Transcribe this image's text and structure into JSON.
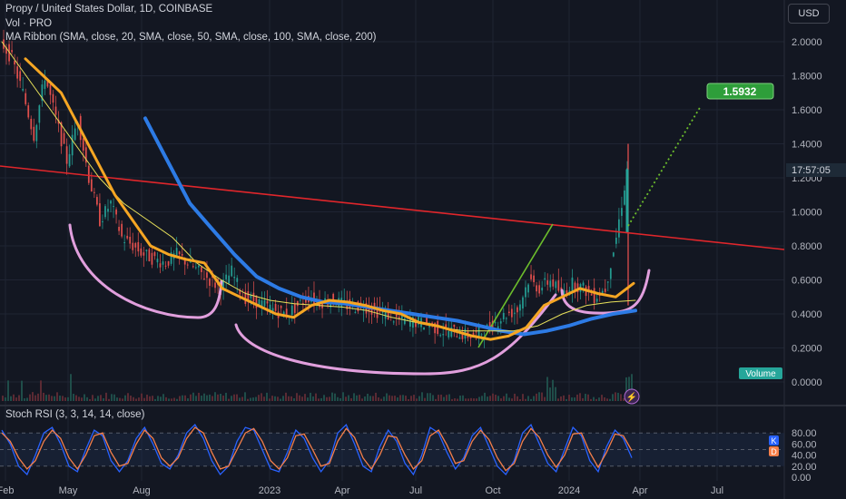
{
  "header": {
    "title": "Propy / United States Dollar, 1D, COINBASE",
    "vol": "Vol · PRO",
    "ma_ribbon": "MA Ribbon (SMA, close, 20, SMA, close, 50, SMA, close, 100, SMA, close, 200)"
  },
  "currency_button": "USD",
  "price_axis": {
    "ticks": [
      "2.0000",
      "1.8000",
      "1.6000",
      "1.4000",
      "1.2000",
      "1.0000",
      "0.8000",
      "0.6000",
      "0.4000",
      "0.2000",
      "0.0000"
    ],
    "current_time_label": "17:57:05",
    "volume_label": "Volume"
  },
  "time_axis": {
    "ticks": [
      "Feb",
      "May",
      "Aug",
      "2023",
      "Apr",
      "Jul",
      "Oct",
      "2024",
      "Apr",
      "Jul"
    ]
  },
  "target_label": "1.5932",
  "stoch_rsi": {
    "title": "Stoch RSI (3, 3, 14, 14, close)",
    "ticks": [
      "80.00",
      "60.00",
      "40.00",
      "20.00",
      "0.00"
    ],
    "k_label": "K",
    "d_label": "D"
  },
  "colors": {
    "background": "#131722",
    "grid": "#1f2433",
    "sma20": "#f5a623",
    "sma50": "#e8e15a",
    "sma100": "#2d7be5",
    "trendline": "#e0262b",
    "arcs": "#e19fdd",
    "green_line": "#6cbd2c",
    "target": "#2e9e3a",
    "stoch_k": "#2962ff",
    "stoch_d": "#f57f4a",
    "time_badge": "#1e2a37",
    "volume_badge": "#26a69a"
  },
  "chart_data": [
    {
      "type": "line",
      "name": "price",
      "x_ticks": [
        "Feb",
        "May",
        "Aug",
        "2023",
        "Apr",
        "Jul",
        "Oct",
        "2024",
        "Apr",
        "Jul"
      ],
      "ylim": [
        0,
        2.1
      ],
      "y_ticks": [
        2.0,
        1.8,
        1.6,
        1.4,
        1.2,
        1.0,
        0.8,
        0.6,
        0.4,
        0.2,
        0.0
      ],
      "target_value": 1.5932,
      "close_series": [
        2.0,
        1.9,
        1.7,
        1.45,
        1.8,
        1.55,
        1.3,
        1.55,
        1.2,
        0.95,
        1.05,
        0.85,
        0.8,
        0.75,
        0.72,
        0.7,
        0.75,
        0.7,
        0.65,
        0.6,
        0.55,
        0.65,
        0.5,
        0.48,
        0.45,
        0.42,
        0.4,
        0.45,
        0.5,
        0.47,
        0.48,
        0.46,
        0.44,
        0.45,
        0.42,
        0.4,
        0.37,
        0.36,
        0.35,
        0.34,
        0.3,
        0.3,
        0.28,
        0.27,
        0.3,
        0.35,
        0.4,
        0.42,
        0.6,
        0.55,
        0.6,
        0.52,
        0.58,
        0.55,
        0.5,
        0.55,
        0.85,
        1.25
      ],
      "series": [
        {
          "name": "SMA 20",
          "values": [
            1.9,
            1.8,
            1.7,
            1.5,
            1.3,
            1.1,
            0.95,
            0.8,
            0.75,
            0.72,
            0.7,
            0.55,
            0.5,
            0.45,
            0.4,
            0.38,
            0.45,
            0.48,
            0.47,
            0.45,
            0.42,
            0.4,
            0.35,
            0.33,
            0.3,
            0.27,
            0.25,
            0.27,
            0.32,
            0.45,
            0.5,
            0.55,
            0.52,
            0.5,
            0.58
          ]
        },
        {
          "name": "SMA 50",
          "values": [
            2.0,
            1.8,
            1.6,
            1.4,
            1.2,
            1.05,
            0.95,
            0.85,
            0.7,
            0.6,
            0.52,
            0.48,
            0.46,
            0.45,
            0.44,
            0.42,
            0.38,
            0.35,
            0.32,
            0.3,
            0.3,
            0.3,
            0.33,
            0.4,
            0.45,
            0.47,
            0.48
          ]
        },
        {
          "name": "SMA 100",
          "values": [
            1.55,
            1.3,
            1.05,
            0.9,
            0.75,
            0.62,
            0.55,
            0.5,
            0.47,
            0.46,
            0.44,
            0.42,
            0.4,
            0.38,
            0.36,
            0.33,
            0.3,
            0.28,
            0.3,
            0.33,
            0.37,
            0.4,
            0.42
          ]
        }
      ]
    },
    {
      "type": "line",
      "name": "Stoch RSI",
      "ylim": [
        0,
        100
      ],
      "y_ticks": [
        80,
        60,
        40,
        20,
        0
      ],
      "bands": [
        20,
        80
      ],
      "series": [
        {
          "name": "K",
          "values": [
            85,
            60,
            20,
            5,
            40,
            80,
            90,
            60,
            20,
            10,
            50,
            85,
            75,
            30,
            10,
            30,
            70,
            90,
            60,
            25,
            15,
            40,
            80,
            95,
            70,
            30,
            5,
            20,
            65,
            90,
            85,
            50,
            15,
            10,
            45,
            85,
            70,
            35,
            10,
            30,
            80,
            95,
            60,
            20,
            10,
            55,
            85,
            65,
            25,
            5,
            40,
            90,
            80,
            45,
            15,
            35,
            75,
            90,
            55,
            20,
            5,
            30,
            80,
            95,
            60,
            25,
            10,
            50,
            90,
            75,
            30,
            10,
            55,
            85,
            70,
            35
          ]
        },
        {
          "name": "D",
          "values": [
            80,
            65,
            35,
            15,
            30,
            65,
            85,
            70,
            35,
            15,
            40,
            75,
            80,
            45,
            20,
            25,
            60,
            85,
            70,
            35,
            20,
            35,
            70,
            90,
            80,
            45,
            15,
            20,
            50,
            80,
            88,
            65,
            30,
            15,
            35,
            75,
            78,
            50,
            20,
            25,
            65,
            88,
            72,
            35,
            15,
            40,
            75,
            72,
            40,
            15,
            30,
            75,
            85,
            58,
            25,
            30,
            65,
            85,
            68,
            35,
            12,
            25,
            65,
            88,
            72,
            40,
            18,
            40,
            78,
            80,
            45,
            18,
            45,
            78,
            75,
            48
          ]
        }
      ]
    }
  ]
}
